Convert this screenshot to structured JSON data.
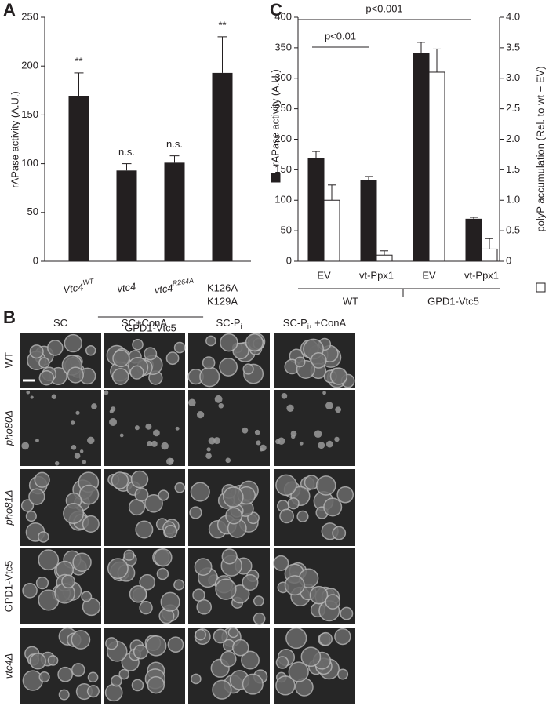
{
  "chart_data": [
    {
      "panel": "A",
      "type": "bar",
      "y_label": "rAPase activity (A.U.)",
      "categories": [
        {
          "text": "Vtc4",
          "sup": "WT"
        },
        {
          "text": "vtc4"
        },
        {
          "text": "vtc4",
          "sup": "R264A"
        },
        {
          "lines": [
            "K126A",
            "K129A"
          ]
        }
      ],
      "values": [
        169,
        93,
        101,
        193
      ],
      "errors": [
        24,
        7,
        7,
        37
      ],
      "annotations": [
        "**",
        "n.s.",
        "n.s.",
        "**"
      ],
      "group_label": "GPD1-Vtc5",
      "color": "#231f20",
      "ylim": [
        0,
        250
      ],
      "yticks": [
        0,
        50,
        100,
        150,
        200,
        250
      ]
    },
    {
      "panel": "C",
      "type": "grouped_bar",
      "categories": [
        "EV",
        "vt-Ppx1",
        "EV",
        "vt-Ppx1"
      ],
      "groups": [
        "WT",
        "GPD1-Vtc5"
      ],
      "series": [
        {
          "name": "rAPase activity (A.U.)",
          "color": "#231f20",
          "values": [
            169,
            133,
            341,
            69
          ],
          "errors": [
            11,
            6,
            18,
            3
          ]
        },
        {
          "name": "polyP accumulation (Rel. to wt + EV)",
          "color": "#ffffff",
          "axis": "y2",
          "values": [
            1.0,
            0.1,
            3.1,
            0.2
          ],
          "errors": [
            0.25,
            0.07,
            0.38,
            0.17
          ]
        }
      ],
      "comparisons": [
        "p<0.01",
        "p<0.001"
      ],
      "ylim": [
        0,
        400
      ],
      "yticks": [
        0,
        50,
        100,
        150,
        200,
        250,
        300,
        350,
        400
      ],
      "y2lim": [
        0,
        4
      ],
      "y2ticks": [
        0,
        0.5,
        {
          "value": 1,
          "label": "1.0"
        },
        1.5,
        {
          "value": 2,
          "label": "2.0"
        },
        2.5,
        {
          "value": 3,
          "label": "3.0"
        },
        3.5,
        {
          "value": 4,
          "label": "4.0"
        }
      ]
    }
  ],
  "panel_b": {
    "letter": "B",
    "columns": [
      {
        "text": "SC"
      },
      {
        "text": "SC+ConA"
      },
      {
        "text": "SC-P",
        "sub": "i"
      },
      {
        "text": "SC-P",
        "sub": "i",
        "rest": ", +ConA"
      }
    ],
    "rows": [
      {
        "text": "WT",
        "italic": false
      },
      {
        "text": "pho80Δ",
        "italic": true
      },
      {
        "text": "pho81Δ",
        "italic": true
      },
      {
        "text": "GPD1-Vtc5",
        "italic": false
      },
      {
        "text": "vtc4Δ",
        "italic": true
      }
    ]
  }
}
